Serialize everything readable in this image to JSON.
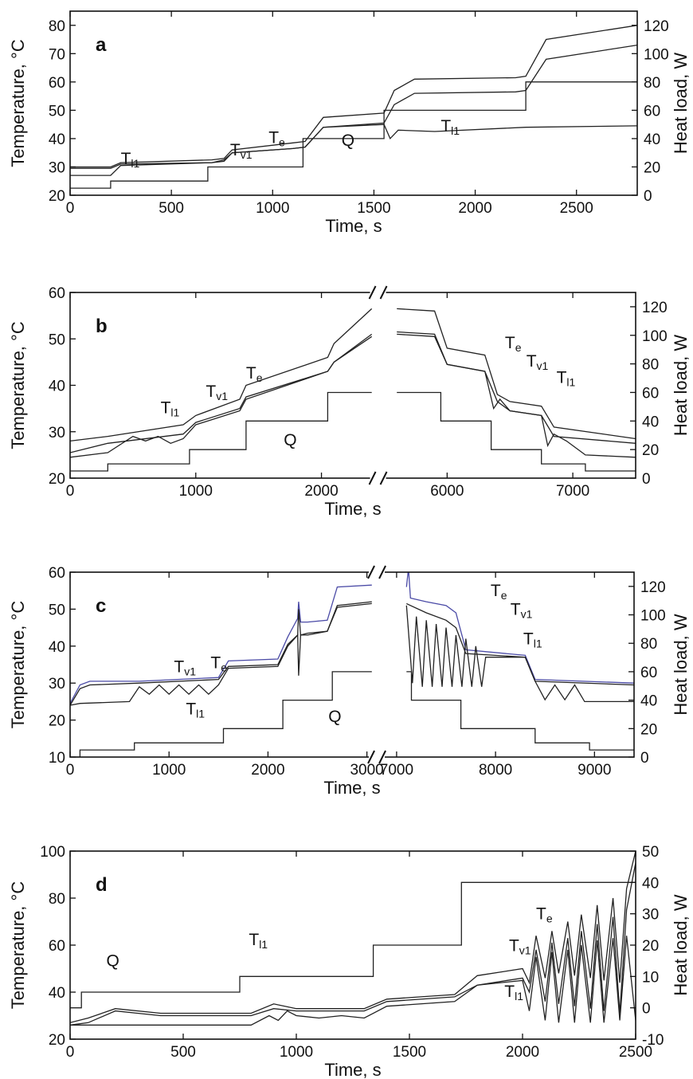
{
  "chart_data": [
    {
      "type": "line",
      "panel_label": "a",
      "xlabel": "Time,  s",
      "ylabel": "Temperature,  °C",
      "ylabel_right": "Heat load,  W",
      "xlim": [
        0,
        2800
      ],
      "ylim": [
        20,
        85
      ],
      "ylim_right": [
        0,
        130
      ],
      "x_ticks": [
        "0",
        "500",
        "1000",
        "1500",
        "2000",
        "2500"
      ],
      "y_ticks": [
        "20",
        "30",
        "40",
        "50",
        "60",
        "70",
        "80"
      ],
      "y_right_ticks": [
        "0",
        "20",
        "40",
        "60",
        "80",
        "100",
        "120"
      ],
      "series": [
        {
          "name": "Te",
          "axis": "left",
          "x": [
            0,
            200,
            250,
            700,
            760,
            800,
            1100,
            1160,
            1250,
            1550,
            1600,
            1700,
            2200,
            2250,
            2350,
            2800
          ],
          "y": [
            30,
            30,
            31.5,
            32.5,
            33,
            36,
            38.5,
            39,
            47.5,
            49,
            57,
            61,
            61.5,
            62,
            75,
            80
          ]
        },
        {
          "name": "Tv1",
          "axis": "left",
          "x": [
            0,
            200,
            250,
            700,
            760,
            800,
            1100,
            1160,
            1250,
            1550,
            1600,
            1700,
            2200,
            2250,
            2350,
            2800
          ],
          "y": [
            29.5,
            29.5,
            31,
            31.5,
            32.5,
            35,
            36.5,
            37,
            44,
            45.5,
            52,
            56,
            56.5,
            57,
            68,
            73
          ]
        },
        {
          "name": "Tl1",
          "axis": "left",
          "x": [
            0,
            200,
            250,
            700,
            760,
            800,
            1100,
            1160,
            1250,
            1550,
            1580,
            1620,
            1800,
            2250,
            2800
          ],
          "y": [
            27,
            27,
            30.5,
            31.5,
            32,
            35,
            36.5,
            37,
            44,
            45,
            40,
            43,
            42.5,
            44,
            44.5
          ]
        },
        {
          "name": "Q",
          "axis": "right",
          "x": [
            0,
            200,
            200,
            680,
            680,
            1150,
            1150,
            1550,
            1550,
            2250,
            2250,
            2800
          ],
          "y": [
            5,
            5,
            10,
            10,
            20,
            20,
            40,
            40,
            60,
            60,
            80,
            80
          ]
        }
      ],
      "annotations": [
        {
          "label": "T",
          "sub": "l1",
          "x": 250,
          "y": 31
        },
        {
          "label": "T",
          "sub": "v1",
          "x": 790,
          "y": 34
        },
        {
          "label": "T",
          "sub": "e",
          "x": 980,
          "y": 38.5
        },
        {
          "label": "Q",
          "x": 1340,
          "y": 37.5
        },
        {
          "label": "T",
          "sub": "l1",
          "x": 1830,
          "y": 42.5
        }
      ]
    },
    {
      "type": "line",
      "panel_label": "b",
      "xlabel": "Time,  s",
      "ylabel": "Temperature,  °C",
      "ylabel_right": "Heat load,  W",
      "xlim": [
        0,
        7500
      ],
      "axis_break": {
        "from": 2450,
        "to": 5450
      },
      "ylim": [
        20,
        60
      ],
      "ylim_right": [
        0,
        130
      ],
      "x_ticks": [
        "0",
        "1000",
        "2000",
        "6000",
        "7000"
      ],
      "y_ticks": [
        "20",
        "30",
        "40",
        "50",
        "60"
      ],
      "y_right_ticks": [
        "0",
        "20",
        "40",
        "60",
        "80",
        "100",
        "120"
      ],
      "series": [
        {
          "name": "Te",
          "axis": "left",
          "x": [
            0,
            300,
            900,
            1000,
            1350,
            1400,
            2050,
            2100,
            2400,
            5600,
            5900,
            6000,
            6300,
            6400,
            6500,
            6750,
            6850,
            7500
          ],
          "y": [
            28,
            29,
            31.5,
            33.5,
            37,
            40,
            46,
            49,
            56.5,
            56.5,
            56,
            48,
            46.5,
            38,
            36.5,
            35.5,
            31,
            28.5
          ]
        },
        {
          "name": "Tv1",
          "axis": "left",
          "x": [
            0,
            300,
            900,
            1000,
            1350,
            1400,
            2050,
            2100,
            2400,
            5600,
            5900,
            6000,
            6300,
            6400,
            6500,
            6750,
            6850,
            7500
          ],
          "y": [
            25.5,
            27.5,
            29.5,
            32,
            35,
            37.5,
            43,
            45,
            51,
            51.5,
            51,
            44.5,
            43,
            36.5,
            34.5,
            33.5,
            29,
            27.5
          ]
        },
        {
          "name": "Tl1",
          "axis": "left",
          "x": [
            0,
            300,
            500,
            600,
            700,
            800,
            900,
            1000,
            1350,
            1400,
            2050,
            2100,
            2400,
            5600,
            5900,
            6000,
            6300,
            6370,
            6420,
            6500,
            6750,
            6800,
            6850,
            6950,
            7100,
            7500
          ],
          "y": [
            24.5,
            25.5,
            29,
            28,
            29,
            27.5,
            28.5,
            31.5,
            34.5,
            37,
            43,
            45,
            50.5,
            51,
            50.5,
            44.5,
            43,
            35,
            37,
            34.5,
            33.5,
            27,
            29.5,
            28,
            25,
            24.5
          ]
        },
        {
          "name": "Q",
          "axis": "right",
          "x": [
            0,
            300,
            300,
            950,
            950,
            1400,
            1400,
            2050,
            2050,
            2400,
            5600,
            5950,
            5950,
            6350,
            6350,
            6750,
            6750,
            7100,
            7100,
            7500
          ],
          "y": [
            5,
            5,
            10,
            10,
            20,
            20,
            40,
            40,
            60,
            60,
            60,
            60,
            40,
            40,
            20,
            20,
            10,
            10,
            5,
            5
          ]
        }
      ],
      "annotations": [
        {
          "label": "T",
          "sub": "l1",
          "x": 720,
          "y": 34
        },
        {
          "label": "T",
          "sub": "v1",
          "x": 1080,
          "y": 37.5
        },
        {
          "label": "T",
          "sub": "e",
          "x": 1400,
          "y": 41.5
        },
        {
          "label": "Q",
          "x": 1700,
          "y": 27
        },
        {
          "label": "T",
          "sub": "e",
          "x": 6460,
          "y": 48
        },
        {
          "label": "T",
          "sub": "v1",
          "x": 6630,
          "y": 44
        },
        {
          "label": "T",
          "sub": "l1",
          "x": 6870,
          "y": 40.5
        }
      ]
    },
    {
      "type": "line",
      "panel_label": "c",
      "xlabel": "Time,  s",
      "ylabel": "Temperature,  °C",
      "ylabel_right": "Heat load,  W",
      "xlim": [
        0,
        9400
      ],
      "axis_break": {
        "from": 3100,
        "to": 6800
      },
      "ylim": [
        10,
        60
      ],
      "ylim_right": [
        0,
        130
      ],
      "x_ticks": [
        "0",
        "1000",
        "2000",
        "3000",
        "7000",
        "8000",
        "9000"
      ],
      "y_ticks": [
        "10",
        "20",
        "30",
        "40",
        "50",
        "60"
      ],
      "y_right_ticks": [
        "0",
        "20",
        "40",
        "60",
        "80",
        "100",
        "120"
      ],
      "series": [
        {
          "name": "Te",
          "axis": "left",
          "color": "#4a4aa6",
          "x": [
            0,
            100,
            200,
            700,
            1500,
            1600,
            2100,
            2200,
            2300,
            2310,
            2330,
            2400,
            2600,
            2700,
            3050,
            7100,
            7120,
            7140,
            7300,
            7500,
            7600,
            7700,
            8300,
            8400,
            9400
          ],
          "y": [
            24.5,
            29.5,
            30.5,
            30.5,
            31.5,
            36,
            36.5,
            42.5,
            47.5,
            52,
            46.5,
            46.5,
            47,
            56,
            56.5,
            56,
            61,
            53,
            52,
            51,
            49,
            39,
            37.5,
            31,
            30
          ]
        },
        {
          "name": "Tv1",
          "axis": "left",
          "x": [
            0,
            100,
            200,
            700,
            1500,
            1600,
            2100,
            2200,
            2300,
            2310,
            2330,
            2400,
            2600,
            2700,
            3050,
            7100,
            7140,
            7300,
            7500,
            7600,
            7700,
            8300,
            8400,
            9400
          ],
          "y": [
            24,
            28.5,
            29.5,
            30,
            31,
            34.5,
            35,
            40.5,
            43,
            50,
            43,
            43.5,
            44,
            51,
            52,
            51.5,
            51,
            49,
            47,
            45,
            38,
            37,
            30.5,
            29.5
          ]
        },
        {
          "name": "Tl1",
          "axis": "left",
          "x": [
            0,
            100,
            600,
            700,
            800,
            900,
            1000,
            1100,
            1200,
            1300,
            1400,
            1500,
            1600,
            2100,
            2200,
            2300,
            2310,
            2330,
            2400,
            2600,
            2700,
            3050,
            7100,
            7160,
            7200,
            7260,
            7300,
            7360,
            7400,
            7460,
            7500,
            7560,
            7600,
            7660,
            7700,
            7760,
            7800,
            7860,
            7900,
            8300,
            8400,
            8500,
            8600,
            8700,
            8800,
            8900,
            9000,
            9400
          ],
          "y": [
            24,
            24.5,
            25,
            29,
            27,
            29.5,
            27,
            29.5,
            27,
            29.5,
            27,
            29.5,
            34,
            34.5,
            40,
            43,
            32,
            43,
            43,
            44,
            50.5,
            51.5,
            51,
            30,
            48,
            29,
            47,
            29,
            46,
            29,
            45,
            29,
            43,
            29,
            42,
            29,
            40,
            29,
            37,
            37,
            30.5,
            25.5,
            29.5,
            25.5,
            29.5,
            25,
            25,
            25
          ]
        },
        {
          "name": "Q",
          "axis": "right",
          "x": [
            0,
            100,
            100,
            650,
            650,
            1550,
            1550,
            2150,
            2150,
            2650,
            2650,
            3050,
            7100,
            7150,
            7150,
            7650,
            7650,
            8400,
            8400,
            8950,
            8950,
            9400
          ],
          "y": [
            0,
            0,
            5,
            5,
            10,
            10,
            20,
            20,
            40,
            40,
            60,
            60,
            60,
            60,
            40,
            40,
            20,
            20,
            10,
            10,
            5,
            5
          ]
        }
      ],
      "annotations": [
        {
          "label": "T",
          "sub": "v1",
          "x": 1050,
          "y": 33
        },
        {
          "label": "T",
          "sub": "e",
          "x": 1420,
          "y": 34
        },
        {
          "label": "T",
          "sub": "l1",
          "x": 1170,
          "y": 21.5
        },
        {
          "label": "Q",
          "x": 2610,
          "y": 19.5
        },
        {
          "label": "T",
          "sub": "e",
          "x": 7950,
          "y": 53.5
        },
        {
          "label": "T",
          "sub": "v1",
          "x": 8150,
          "y": 48.5
        },
        {
          "label": "T",
          "sub": "l1",
          "x": 8280,
          "y": 40.5
        }
      ]
    },
    {
      "type": "line",
      "panel_label": "d",
      "xlabel": "Time,  s",
      "ylabel": "Temperature,  °C",
      "ylabel_right": "Heat load,  W",
      "xlim": [
        0,
        2500
      ],
      "ylim": [
        20,
        100
      ],
      "ylim_right": [
        -10,
        50
      ],
      "x_ticks": [
        "0",
        "500",
        "1000",
        "1500",
        "2000",
        "2500"
      ],
      "y_ticks": [
        "20",
        "40",
        "60",
        "80",
        "100"
      ],
      "y_right_ticks": [
        "-10",
        "0",
        "10",
        "20",
        "30",
        "40",
        "50"
      ],
      "series": [
        {
          "name": "Te",
          "axis": "left",
          "x": [
            0,
            80,
            200,
            400,
            800,
            900,
            1000,
            1300,
            1400,
            1700,
            1800,
            2000,
            2030,
            2060,
            2100,
            2130,
            2160,
            2200,
            2230,
            2260,
            2300,
            2330,
            2360,
            2400,
            2430,
            2460,
            2500
          ],
          "y": [
            27,
            29,
            33,
            31,
            31,
            35,
            33,
            33,
            37,
            39,
            47,
            50,
            44,
            64,
            46,
            66,
            48,
            70,
            47,
            73,
            46,
            77,
            45,
            80,
            44,
            84,
            100
          ]
        },
        {
          "name": "Tv1",
          "axis": "left",
          "x": [
            0,
            80,
            200,
            400,
            800,
            900,
            1000,
            1300,
            1400,
            1700,
            1800,
            2000,
            2030,
            2060,
            2100,
            2130,
            2160,
            2200,
            2230,
            2260,
            2300,
            2330,
            2360,
            2400,
            2430,
            2460,
            2500
          ],
          "y": [
            26,
            27,
            32,
            30,
            30,
            33,
            32,
            32,
            36,
            38,
            43,
            46,
            40,
            58,
            36,
            61,
            35,
            63,
            34,
            66,
            33,
            69,
            32,
            72,
            31,
            75,
            95
          ]
        },
        {
          "name": "Tl1",
          "axis": "left",
          "x": [
            0,
            100,
            800,
            880,
            920,
            960,
            1000,
            1100,
            1200,
            1300,
            1400,
            1700,
            1800,
            2000,
            2030,
            2060,
            2100,
            2130,
            2160,
            2200,
            2230,
            2260,
            2300,
            2330,
            2360,
            2400,
            2430,
            2460,
            2500
          ],
          "y": [
            26,
            26,
            26,
            30,
            28,
            32,
            30,
            29,
            30,
            29,
            34,
            36,
            43,
            45,
            32,
            55,
            28,
            57,
            27,
            58,
            27,
            60,
            27,
            62,
            27,
            63,
            28,
            64,
            28
          ]
        },
        {
          "name": "Q",
          "axis": "right",
          "x": [
            0,
            50,
            50,
            750,
            750,
            1340,
            1340,
            1730,
            1730,
            2500
          ],
          "y": [
            0,
            0,
            5,
            5,
            10,
            10,
            20,
            20,
            40,
            40
          ]
        }
      ],
      "annotations": [
        {
          "label": "Q",
          "x": 160,
          "y": 51
        },
        {
          "label": "T",
          "sub": "l1",
          "x": 790,
          "y": 60
        },
        {
          "label": "T",
          "sub": "e",
          "x": 2060,
          "y": 71
        },
        {
          "label": "T",
          "sub": "v1",
          "x": 1940,
          "y": 57.5
        },
        {
          "label": "T",
          "sub": "l1",
          "x": 1920,
          "y": 38
        }
      ]
    }
  ]
}
